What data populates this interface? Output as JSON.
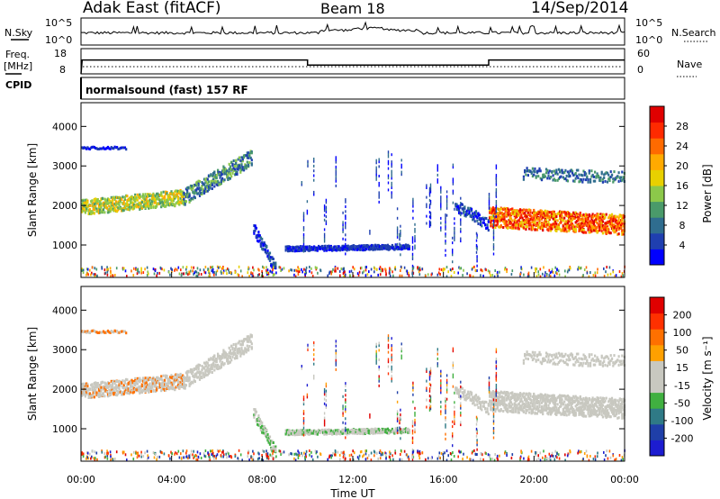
{
  "header": {
    "station": "Adak East (fitACF)",
    "beam": "Beam 18",
    "date": "14/Sep/2014"
  },
  "left_labels": {
    "nsky": "N.Sky",
    "freq_top": "Freq.",
    "freq_unit": "[MHz]",
    "cpid": "CPID"
  },
  "right_labels": {
    "nsearch": "N.Search",
    "nave": "Nave"
  },
  "cpid_text": "normalsound (fast) 157 RF",
  "noise_ticks": {
    "top": "10^5",
    "bottom": "10^0"
  },
  "freq_ticks": {
    "left_top": "18",
    "left_bottom": "8",
    "right_top": "60",
    "right_bottom": "0"
  },
  "colors": {
    "power_scale": [
      "#0000ff",
      "#1f3fb0",
      "#2f6d8f",
      "#4a9a6a",
      "#8cc84a",
      "#e8d000",
      "#ffaa00",
      "#ff6a00",
      "#ff2a00",
      "#e00000"
    ],
    "velocity_scale": [
      "#1c1cd0",
      "#1f3fa8",
      "#2f7a86",
      "#40b040",
      "#c8c8c0",
      "#c8c8c0",
      "#ffa000",
      "#ff7000",
      "#ff3000",
      "#e00000"
    ]
  },
  "chart_data": [
    {
      "type": "line",
      "title": "",
      "ylabel": "N.Sky",
      "y_scale": "log",
      "ylim": [
        1,
        100000
      ],
      "x": [
        "00:00",
        "04:00",
        "08:00",
        "12:00",
        "16:00",
        "20:00",
        "00:00"
      ]
    },
    {
      "type": "line",
      "ylabel": "Freq. [MHz]",
      "ylim": [
        8,
        18
      ],
      "series": [
        {
          "name": "Freq.",
          "x_hours": [
            0,
            0.05,
            10,
            10,
            18,
            18,
            24
          ],
          "values": [
            8,
            13.5,
            13.5,
            11.5,
            11.5,
            13.5,
            13.5
          ]
        }
      ],
      "y2label": "Nave",
      "y2lim": [
        0,
        60
      ]
    },
    {
      "type": "heatmap",
      "quantity": "Power",
      "ylabel": "Slant Range [km]",
      "colorbar_label": "Power [dB]",
      "colorbar_ticks": [
        "4",
        "8",
        "12",
        "16",
        "20",
        "24",
        "28"
      ],
      "y_ticks": [
        "1000",
        "2000",
        "3000",
        "4000"
      ],
      "ylim": [
        180,
        4600
      ]
    },
    {
      "type": "heatmap",
      "quantity": "Velocity",
      "ylabel": "Slant Range [km]",
      "xlabel": "Time UT",
      "colorbar_label": "Velocity [m s⁻¹]",
      "colorbar_ticks": [
        "-200",
        "-100",
        "-50",
        "-15",
        "15",
        "50",
        "100",
        "200"
      ],
      "y_ticks": [
        "1000",
        "2000",
        "3000",
        "4000"
      ],
      "x_ticks": [
        "00:00",
        "04:00",
        "08:00",
        "12:00",
        "16:00",
        "20:00",
        "00:00"
      ],
      "ylim": [
        180,
        4600
      ],
      "xlim": [
        "00:00",
        "24:00"
      ]
    }
  ]
}
